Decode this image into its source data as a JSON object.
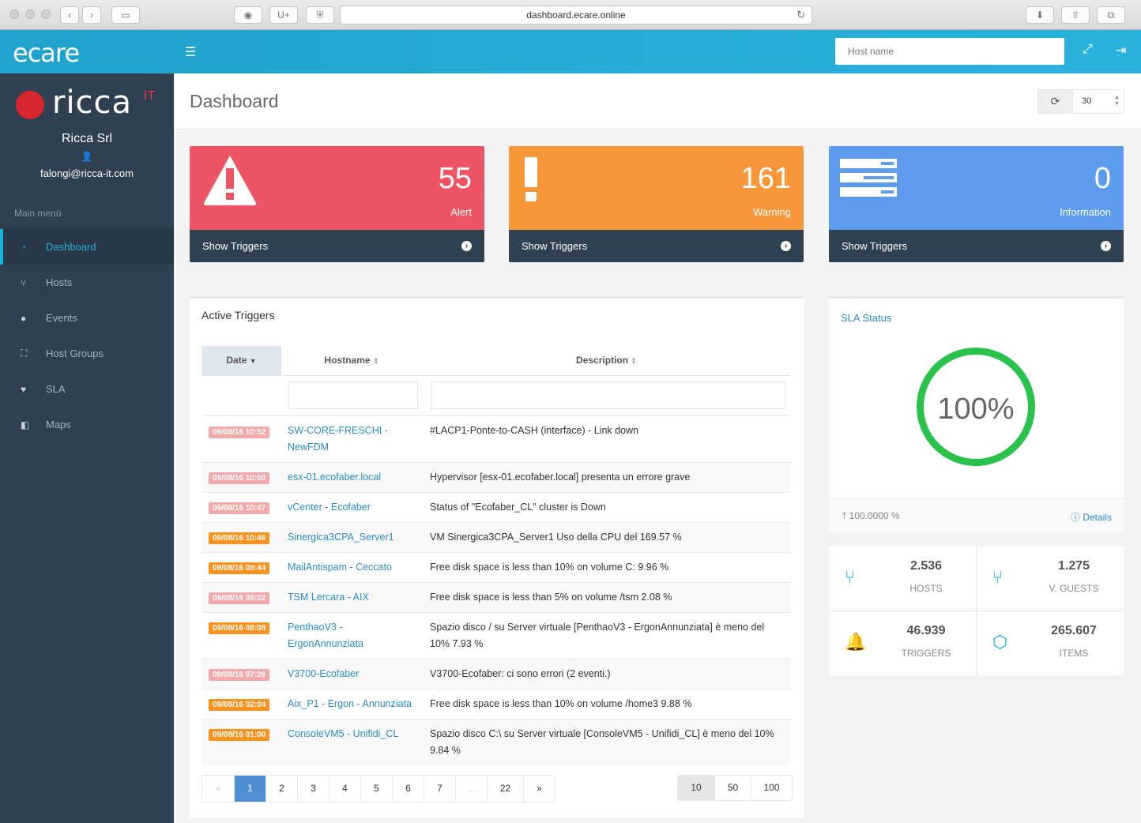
{
  "browser": {
    "url": "dashboard.ecare.online",
    "btn_u": "U+"
  },
  "topbar": {
    "logo": "ecare",
    "search_placeholder": "Host name"
  },
  "sidebar": {
    "brand": "ricca",
    "brand_sup": "IT",
    "company": "Ricca Srl",
    "email": "falongi@ricca-it.com",
    "menu_title": "Main menù",
    "items": [
      {
        "label": "Dashboard",
        "icon": "dashboard-gauge-icon",
        "glyph": "◔",
        "active": true
      },
      {
        "label": "Hosts",
        "icon": "fork-icon",
        "glyph": "⑂",
        "active": false
      },
      {
        "label": "Events",
        "icon": "alert-circle-icon",
        "glyph": "●",
        "active": false
      },
      {
        "label": "Host Groups",
        "icon": "sitemap-icon",
        "glyph": "⛶",
        "active": false
      },
      {
        "label": "SLA",
        "icon": "heartbeat-icon",
        "glyph": "♥",
        "active": false
      },
      {
        "label": "Maps",
        "icon": "share-square-icon",
        "glyph": "◧",
        "active": false
      }
    ]
  },
  "header": {
    "title": "Dashboard",
    "refresh_value": "30"
  },
  "stats": [
    {
      "value": "55",
      "label": "Alert",
      "link": "Show Triggers",
      "color": "#ed5565"
    },
    {
      "value": "161",
      "label": "Warning",
      "link": "Show Triggers",
      "color": "#f8ac59"
    },
    {
      "value": "0",
      "label": "Information",
      "link": "Show Triggers",
      "color": "#5d9cec"
    }
  ],
  "triggers": {
    "title": "Active Triggers",
    "columns": [
      "Date",
      "Hostname",
      "Description"
    ],
    "rows": [
      {
        "date": "09/08/16 10:52",
        "host": "SW-CORE-FRESCHI - NewFDM",
        "desc": "#LACP1-Ponte-to-CASH (interface) - Link down",
        "severity": "light"
      },
      {
        "date": "09/08/16 10:50",
        "host": "esx-01.ecofaber.local",
        "desc": "Hypervisor [esx-01.ecofaber.local] presenta un errore grave",
        "severity": "light"
      },
      {
        "date": "09/08/16 10:47",
        "host": "vCenter - Ecofaber",
        "desc": "Status of \"Ecofaber_CL\" cluster is Down",
        "severity": "light"
      },
      {
        "date": "09/08/16 10:46",
        "host": "Sinergica3CPA_Server1",
        "desc": "VM Sinergica3CPA_Server1 Uso della CPU del 169.57 %",
        "severity": "orange"
      },
      {
        "date": "09/08/16 09:44",
        "host": "MailAntispam - Ceccato",
        "desc": "Free disk space is less than 10% on volume C: 9.96 %",
        "severity": "orange"
      },
      {
        "date": "09/08/16 09:02",
        "host": "TSM Lercara - AIX",
        "desc": "Free disk space is less than 5% on volume /tsm 2.08 %",
        "severity": "light"
      },
      {
        "date": "09/08/16 08:08",
        "host": "PenthaoV3 - ErgonAnnunziata",
        "desc": "Spazio disco / su Server virtuale [PenthaoV3 - ErgonAnnunziata] è meno del 10% 7.93 %",
        "severity": "orange"
      },
      {
        "date": "09/08/16 07:26",
        "host": "V3700-Ecofaber",
        "desc": "V3700-Ecofaber: ci sono errori (2 eventi.)",
        "severity": "light"
      },
      {
        "date": "09/08/16 02:04",
        "host": "Aix_P1 - Ergon - Annunziata",
        "desc": "Free disk space is less than 10% on volume /home3 9.88 %",
        "severity": "orange"
      },
      {
        "date": "09/08/16 01:00",
        "host": "ConsoleVM5 - Unifidi_CL",
        "desc": "Spazio disco C:\\ su Server virtuale [ConsoleVM5 - Unifidi_CL] è meno del 10% 9.84 %",
        "severity": "orange"
      }
    ],
    "pages": [
      "«",
      "1",
      "2",
      "3",
      "4",
      "5",
      "6",
      "7",
      "…",
      "22",
      "»"
    ],
    "page_sizes": [
      "10",
      "50",
      "100"
    ]
  },
  "sla": {
    "title": "SLA Status",
    "percent": "100%",
    "value": "100.0000 %",
    "details": "Details",
    "ring_color": "#2ac24d"
  },
  "counters": [
    {
      "value": "2.536",
      "label": "HOSTS",
      "icon": "fork-icon",
      "glyph": "⑂"
    },
    {
      "value": "1.275",
      "label": "V. GUESTS",
      "icon": "fork-icon",
      "glyph": "⑂"
    },
    {
      "value": "46.939",
      "label": "TRIGGERS",
      "icon": "bell-icon",
      "glyph": "🔔"
    },
    {
      "value": "265.607",
      "label": "ITEMS",
      "icon": "cubes-icon",
      "glyph": "⬡"
    }
  ]
}
